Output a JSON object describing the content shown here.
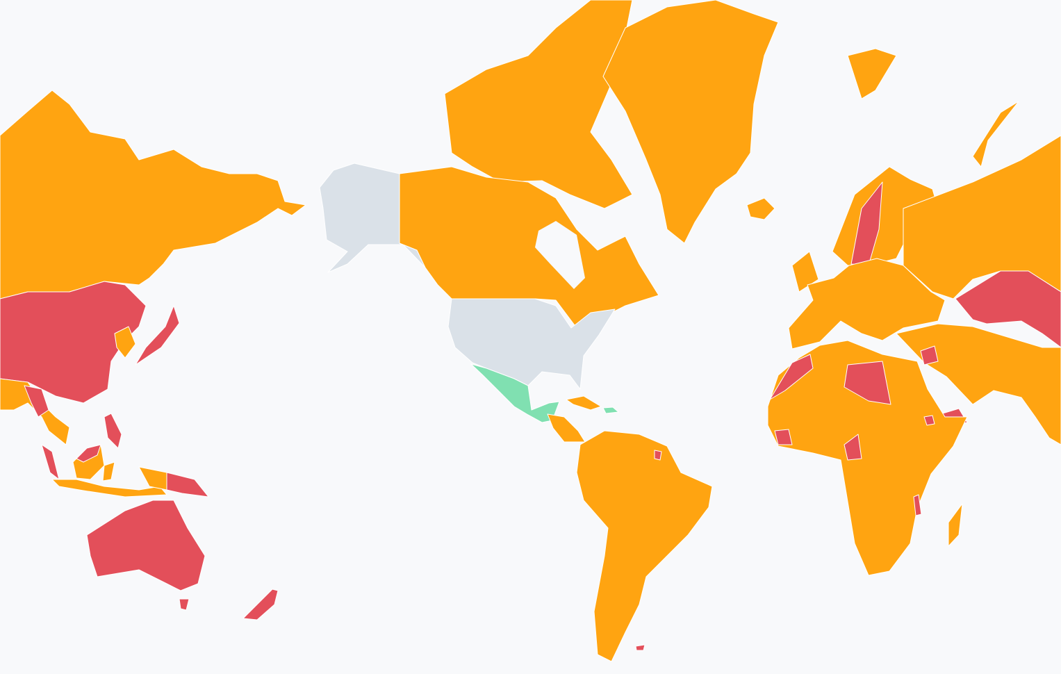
{
  "map": {
    "background": "#F8F9FB",
    "border_color": "#FFFFFF",
    "category_colors": {
      "orange": "#FFA411",
      "red": "#E34F5A",
      "green": "#80E0B1",
      "gray": "#DAE1E8"
    }
  }
}
